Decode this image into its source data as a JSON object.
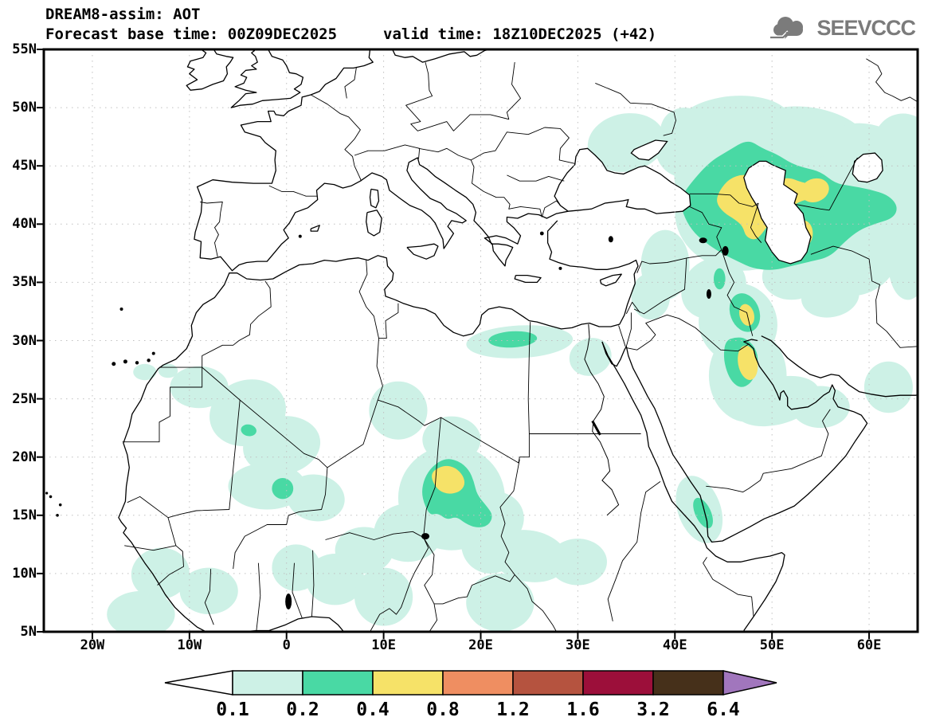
{
  "header": {
    "title_line1": "DREAM8-assim: AOT",
    "base_time_label": "Forecast base time: 00Z09DEC2025",
    "valid_time_label": "valid time: 18Z10DEC2025 (+42)"
  },
  "logo": {
    "text": "SEEVCCC",
    "icon": "cloud-icon",
    "color": "#7b7b7b"
  },
  "map": {
    "extent": {
      "lon_min": -25,
      "lon_max": 65,
      "lat_min": 5,
      "lat_max": 55
    },
    "y_ticks": [
      {
        "lat": 55,
        "label": "55N"
      },
      {
        "lat": 50,
        "label": "50N"
      },
      {
        "lat": 45,
        "label": "45N"
      },
      {
        "lat": 40,
        "label": "40N"
      },
      {
        "lat": 35,
        "label": "35N"
      },
      {
        "lat": 30,
        "label": "30N"
      },
      {
        "lat": 25,
        "label": "25N"
      },
      {
        "lat": 20,
        "label": "20N"
      },
      {
        "lat": 15,
        "label": "15N"
      },
      {
        "lat": 10,
        "label": "10N"
      },
      {
        "lat": 5,
        "label": "5N"
      }
    ],
    "x_ticks": [
      {
        "lon": -20,
        "label": "20W"
      },
      {
        "lon": -10,
        "label": "10W"
      },
      {
        "lon": 0,
        "label": "0"
      },
      {
        "lon": 10,
        "label": "10E"
      },
      {
        "lon": 20,
        "label": "20E"
      },
      {
        "lon": 30,
        "label": "30E"
      },
      {
        "lon": 40,
        "label": "40E"
      },
      {
        "lon": 50,
        "label": "50E"
      },
      {
        "lon": 60,
        "label": "60E"
      }
    ],
    "grid": {
      "lon_step": 10,
      "lat_step": 5,
      "dot_color": "#c0c0c0"
    }
  },
  "colorbar": {
    "labels": [
      "0.1",
      "0.2",
      "0.4",
      "0.8",
      "1.2",
      "1.6",
      "3.2",
      "6.4"
    ],
    "below_color": "#ffffff",
    "box_colors": [
      "#cdf1e6",
      "#49d9a4",
      "#f6e268",
      "#ef8e61",
      "#b5533f",
      "#9c0f3a",
      "#46301a"
    ],
    "above_color": "#a176bd"
  },
  "chart_data": {
    "type": "filled_contour_map",
    "variable": "AOT (aerosol optical thickness)",
    "model": "DREAM8-assim",
    "base_time": "00Z09DEC2025",
    "valid_time": "18Z10DEC2025",
    "lead": "+42",
    "levels": [
      0.1,
      0.2,
      0.4,
      0.8,
      1.2,
      1.6,
      3.2,
      6.4
    ],
    "level_colors": {
      "0.1": "#cdf1e6",
      "0.2": "#49d9a4",
      "0.4": "#f6e268",
      "0.8": "#ef8e61",
      "1.2": "#b5533f",
      "1.6": "#9c0f3a",
      "3.2": "#46301a",
      "6.4+": "#a176bd"
    },
    "regions": [
      {
        "level": 0.1,
        "ellipse": [
          46,
          48.5,
          6,
          2.5,
          -5
        ]
      },
      {
        "level": 0.1,
        "ellipse": [
          54,
          47.5,
          6,
          2.5,
          10
        ]
      },
      {
        "level": 0.1,
        "ellipse": [
          60,
          45.5,
          5,
          3,
          20
        ]
      },
      {
        "level": 0.1,
        "ellipse": [
          63.5,
          47,
          3,
          2.5,
          0
        ]
      },
      {
        "level": 0.1,
        "ellipse": [
          64,
          43,
          3,
          4,
          0
        ]
      },
      {
        "level": 0.1,
        "ellipse": [
          50,
          45,
          8,
          4,
          0
        ]
      },
      {
        "level": 0.1,
        "ellipse": [
          57,
          42,
          6,
          4,
          0
        ]
      },
      {
        "level": 0.1,
        "ellipse": [
          62,
          39.5,
          4,
          3,
          -30
        ]
      },
      {
        "level": 0.1,
        "ellipse": [
          44,
          44.5,
          4,
          4,
          15
        ]
      },
      {
        "level": 0.1,
        "ellipse": [
          41,
          46.5,
          3,
          2.5,
          20
        ]
      },
      {
        "level": 0.1,
        "ellipse": [
          41,
          48,
          2.5,
          2,
          0
        ]
      },
      {
        "level": 0.1,
        "ellipse": [
          35,
          47,
          4,
          2.5,
          -10
        ]
      },
      {
        "level": 0.1,
        "ellipse": [
          47,
          41,
          7,
          5,
          0
        ]
      },
      {
        "level": 0.1,
        "ellipse": [
          54,
          39,
          5,
          4,
          -15
        ]
      },
      {
        "level": 0.1,
        "ellipse": [
          59,
          36.5,
          4,
          2.5,
          -25
        ]
      },
      {
        "level": 0.1,
        "ellipse": [
          64,
          36.5,
          2,
          3,
          0
        ]
      },
      {
        "level": 0.1,
        "ellipse": [
          56,
          33.8,
          3,
          1.8,
          -10
        ]
      },
      {
        "level": 0.1,
        "ellipse": [
          52,
          35.5,
          3,
          2,
          0
        ]
      },
      {
        "level": 0.1,
        "ellipse": [
          39,
          36.5,
          2.5,
          3,
          0
        ]
      },
      {
        "level": 0.1,
        "ellipse": [
          37.5,
          33.8,
          2,
          2,
          0
        ]
      },
      {
        "level": 0.1,
        "ellipse": [
          44,
          34.5,
          3.5,
          2.5,
          -35
        ]
      },
      {
        "level": 0.1,
        "ellipse": [
          46.5,
          31.5,
          4,
          3.5,
          -30
        ]
      },
      {
        "level": 0.1,
        "ellipse": [
          47.5,
          27,
          4,
          4,
          0
        ]
      },
      {
        "level": 0.1,
        "ellipse": [
          50.5,
          24.8,
          4.5,
          2,
          -15
        ]
      },
      {
        "level": 0.1,
        "ellipse": [
          55,
          24.3,
          3,
          1.8,
          0
        ]
      },
      {
        "level": 0.1,
        "ellipse": [
          62,
          26,
          2.5,
          2.2,
          0
        ]
      },
      {
        "level": 0.1,
        "ellipse": [
          42.5,
          15.5,
          2.2,
          3,
          -20
        ]
      },
      {
        "level": 0.1,
        "ellipse": [
          24,
          29.9,
          5.5,
          1.4,
          -3
        ]
      },
      {
        "level": 0.1,
        "ellipse": [
          31.3,
          28.6,
          2.2,
          1.6,
          -20
        ]
      },
      {
        "level": 0.1,
        "ellipse": [
          25,
          11.5,
          4,
          2.2,
          10
        ]
      },
      {
        "level": 0.1,
        "ellipse": [
          30,
          11,
          3,
          2,
          0
        ]
      },
      {
        "level": 0.1,
        "ellipse": [
          21,
          12.5,
          3,
          2.5,
          0
        ]
      },
      {
        "level": 0.1,
        "ellipse": [
          22,
          7.5,
          3.5,
          2.5,
          0
        ]
      },
      {
        "level": 0.1,
        "ellipse": [
          17,
          16.5,
          5.5,
          4.5,
          0
        ]
      },
      {
        "level": 0.1,
        "ellipse": [
          12.5,
          13.5,
          3.5,
          2.5,
          0
        ]
      },
      {
        "level": 0.1,
        "ellipse": [
          21,
          14.5,
          3.5,
          2.5,
          -20
        ]
      },
      {
        "level": 0.1,
        "ellipse": [
          8,
          12,
          3,
          2,
          0
        ]
      },
      {
        "level": 0.1,
        "ellipse": [
          5,
          9.5,
          3,
          2.2,
          0
        ]
      },
      {
        "level": 0.1,
        "ellipse": [
          10,
          8,
          3,
          2.5,
          0
        ]
      },
      {
        "level": 0.1,
        "ellipse": [
          1,
          10.5,
          2.5,
          2,
          0
        ]
      },
      {
        "level": 0.1,
        "ellipse": [
          -13,
          10,
          3,
          2.2,
          -10
        ]
      },
      {
        "level": 0.1,
        "ellipse": [
          -8,
          8.5,
          3,
          2,
          0
        ]
      },
      {
        "level": 0.1,
        "ellipse": [
          -15,
          6.5,
          3.5,
          2,
          0
        ]
      },
      {
        "level": 0.1,
        "ellipse": [
          -9,
          26,
          3,
          1.8,
          0
        ]
      },
      {
        "level": 0.1,
        "ellipse": [
          -4,
          23.8,
          4,
          2.8,
          -20
        ]
      },
      {
        "level": 0.1,
        "ellipse": [
          -0.5,
          21,
          4,
          2.5,
          -10
        ]
      },
      {
        "level": 0.1,
        "ellipse": [
          -2,
          17.5,
          4,
          2,
          0
        ]
      },
      {
        "level": 0.1,
        "ellipse": [
          3,
          16.5,
          3,
          2,
          10
        ]
      },
      {
        "level": 0.1,
        "ellipse": [
          11.5,
          24,
          3,
          2.5,
          0
        ]
      },
      {
        "level": 0.1,
        "ellipse": [
          17,
          21.5,
          3,
          2,
          0
        ]
      },
      {
        "level": 0.1,
        "ellipse": [
          -12.2,
          27.4,
          1,
          0.6,
          0
        ]
      },
      {
        "level": 0.1,
        "ellipse": [
          -14.6,
          27.3,
          1.2,
          0.7,
          0
        ]
      },
      {
        "level": 0.2,
        "poly": [
          [
            41.3,
            43.2
          ],
          [
            43.5,
            45.3
          ],
          [
            45.5,
            46.3
          ],
          [
            47.5,
            47.3
          ],
          [
            49,
            46.5
          ],
          [
            50.5,
            46
          ],
          [
            52,
            45.2
          ],
          [
            53.5,
            44.8
          ],
          [
            55,
            44.5
          ],
          [
            56.5,
            43.5
          ],
          [
            58,
            43.3
          ],
          [
            60,
            43
          ],
          [
            62,
            42.5
          ],
          [
            63,
            41.5
          ],
          [
            62.5,
            40.5
          ],
          [
            60.5,
            40
          ],
          [
            59,
            39.5
          ],
          [
            57.5,
            38.5
          ],
          [
            56,
            37.2
          ],
          [
            54,
            36.8
          ],
          [
            52,
            36.4
          ],
          [
            50,
            36
          ],
          [
            48,
            36.2
          ],
          [
            46.5,
            36.8
          ],
          [
            45,
            37.4
          ],
          [
            43.5,
            38.2
          ],
          [
            42,
            39.2
          ],
          [
            41,
            40.5
          ],
          [
            40.5,
            42
          ]
        ]
      },
      {
        "level": 0.2,
        "ellipse": [
          47.2,
          32.4,
          1.5,
          1.7,
          -20
        ]
      },
      {
        "level": 0.2,
        "poly": [
          [
            45.2,
            30
          ],
          [
            46.3,
            30.3
          ],
          [
            47.3,
            30.2
          ],
          [
            48.2,
            29.5
          ],
          [
            48.6,
            28.5
          ],
          [
            48.4,
            27.3
          ],
          [
            47.8,
            26.3
          ],
          [
            46.8,
            25.9
          ],
          [
            45.9,
            26.4
          ],
          [
            45.3,
            27.4
          ],
          [
            45,
            28.6
          ]
        ]
      },
      {
        "level": 0.2,
        "ellipse": [
          44.6,
          35.3,
          0.6,
          0.9,
          0
        ]
      },
      {
        "level": 0.2,
        "poly": [
          [
            14.2,
            18.2
          ],
          [
            15,
            19.2
          ],
          [
            16.3,
            19.9
          ],
          [
            17.7,
            19.7
          ],
          [
            18.8,
            18.9
          ],
          [
            19.3,
            17.9
          ],
          [
            19.6,
            16.8
          ],
          [
            20.5,
            15.9
          ],
          [
            21.3,
            15
          ],
          [
            20.8,
            14.1
          ],
          [
            19.6,
            13.9
          ],
          [
            18.4,
            14.3
          ],
          [
            17.5,
            14.9
          ],
          [
            16.5,
            14.6
          ],
          [
            15.6,
            15.2
          ],
          [
            14.8,
            15
          ],
          [
            14.2,
            15.9
          ],
          [
            13.9,
            17
          ]
        ]
      },
      {
        "level": 0.2,
        "ellipse": [
          23.3,
          30.1,
          2.5,
          0.7,
          -3
        ]
      },
      {
        "level": 0.2,
        "ellipse": [
          -3.9,
          22.3,
          0.8,
          0.5,
          10
        ]
      },
      {
        "level": 0.2,
        "ellipse": [
          -0.4,
          17.3,
          1.1,
          0.9,
          0
        ]
      },
      {
        "level": 0.2,
        "ellipse": [
          42.9,
          15.2,
          0.8,
          1.4,
          -25
        ]
      },
      {
        "level": 0.4,
        "poly": [
          [
            45.6,
            43.9
          ],
          [
            47,
            44.3
          ],
          [
            48.3,
            44
          ],
          [
            49.5,
            43.4
          ],
          [
            50.6,
            43.8
          ],
          [
            51.8,
            44
          ],
          [
            53,
            43.6
          ],
          [
            54.3,
            43.4
          ],
          [
            55,
            42.8
          ],
          [
            54.2,
            42.2
          ],
          [
            53,
            42
          ],
          [
            52,
            41.5
          ],
          [
            50.8,
            41
          ],
          [
            49.8,
            40.2
          ],
          [
            49,
            39.2
          ],
          [
            48.3,
            38.6
          ],
          [
            47.3,
            38.9
          ],
          [
            47,
            39.8
          ],
          [
            46.2,
            40.4
          ],
          [
            45,
            41
          ],
          [
            44.2,
            41.9
          ],
          [
            44.6,
            42.9
          ]
        ]
      },
      {
        "level": 0.4,
        "ellipse": [
          54.4,
          42.9,
          1.5,
          1,
          -20
        ]
      },
      {
        "level": 0.4,
        "ellipse": [
          53.3,
          39.2,
          0.9,
          1.1,
          0
        ]
      },
      {
        "level": 0.4,
        "ellipse": [
          47.4,
          32.2,
          0.75,
          0.95,
          -15
        ]
      },
      {
        "level": 0.4,
        "ellipse": [
          47.5,
          28.1,
          1,
          1.5,
          -10
        ]
      },
      {
        "level": 0.4,
        "poly": [
          [
            15.2,
            18.9
          ],
          [
            16.3,
            19.3
          ],
          [
            17.4,
            19.1
          ],
          [
            18.2,
            18.4
          ],
          [
            18.4,
            17.6
          ],
          [
            17.8,
            17
          ],
          [
            16.7,
            16.8
          ],
          [
            15.7,
            17.1
          ],
          [
            15.1,
            17.8
          ],
          [
            14.9,
            18.4
          ]
        ]
      }
    ]
  }
}
